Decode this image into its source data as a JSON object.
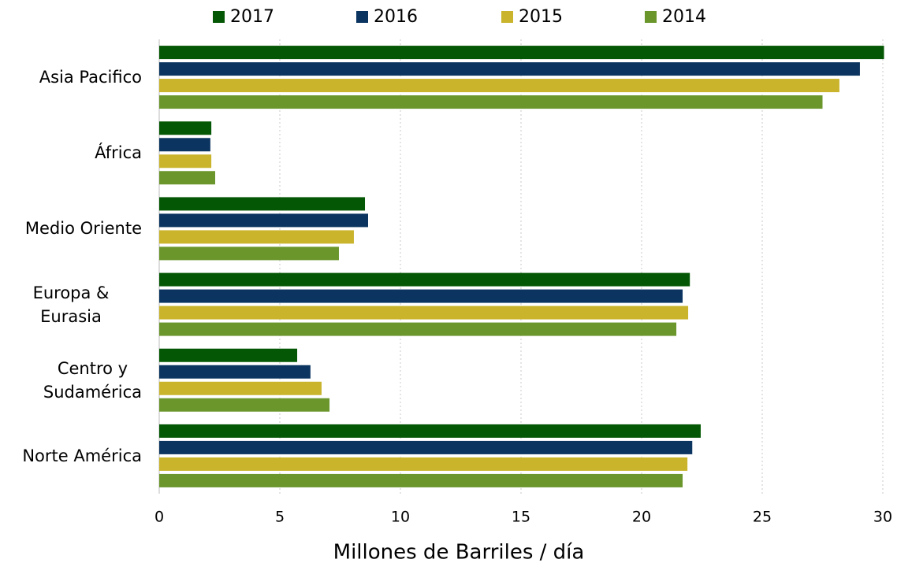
{
  "chart_data": {
    "type": "hbar",
    "x_label": "Millones de Barriles / día",
    "categories": [
      "Asia Pacifico",
      "África",
      "Medio Oriente",
      "Europa & Eurasia",
      "Centro y\nSudamérica",
      "Norte América"
    ],
    "series": [
      {
        "name": "2017",
        "color": "#045704",
        "values": [
          30.05,
          2.16,
          8.53,
          22.0,
          5.72,
          22.45
        ]
      },
      {
        "name": "2016",
        "color": "#0b3560",
        "values": [
          29.05,
          2.12,
          8.66,
          21.7,
          6.27,
          22.1
        ]
      },
      {
        "name": "2015",
        "color": "#c9b42c",
        "values": [
          28.2,
          2.16,
          8.07,
          21.93,
          6.73,
          21.9
        ]
      },
      {
        "name": "2014",
        "color": "#6a962c",
        "values": [
          27.5,
          2.32,
          7.45,
          21.44,
          7.06,
          21.7
        ]
      }
    ],
    "xlim": [
      0,
      30
    ],
    "xticks": [
      0,
      5,
      10,
      15,
      20,
      25,
      30
    ],
    "grid": true,
    "legend": "top"
  }
}
